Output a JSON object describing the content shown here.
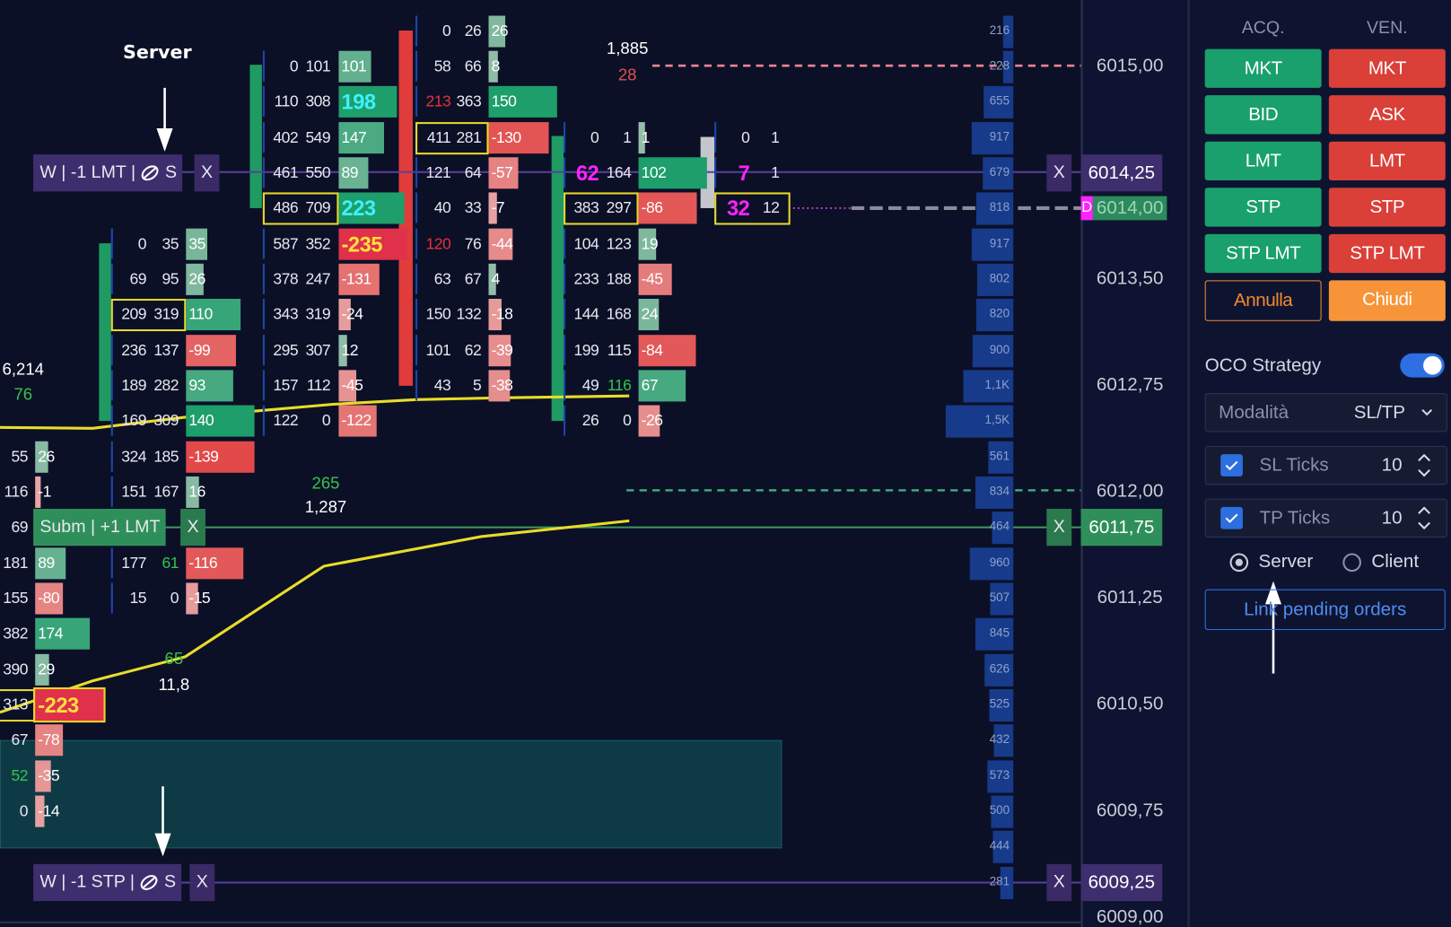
{
  "annotation": "Server",
  "footprint": [
    {
      "rows": [
        {
          "ask": 55,
          "delta": 26
        },
        {
          "ask": 116,
          "delta": -1
        },
        {
          "ask": 69
        },
        {
          "ask": 181,
          "delta": 89
        },
        {
          "ask": 155,
          "delta": -80
        },
        {
          "ask": 382,
          "delta": 174
        },
        {
          "ask": 390,
          "delta": 29
        },
        {
          "ask": 313,
          "delta": -223
        },
        {
          "ask": 67,
          "delta": -78
        },
        {
          "ask": 52,
          "delta": -35
        },
        {
          "ask": 0,
          "delta": -14
        }
      ]
    },
    {
      "rows": [
        {
          "bid": 0,
          "ask": 35,
          "delta": 35
        },
        {
          "bid": 69,
          "ask": 95,
          "delta": 26
        },
        {
          "bid": 209,
          "ask": 319,
          "delta": 110
        },
        {
          "bid": 236,
          "ask": 137,
          "delta": -99
        },
        {
          "bid": 189,
          "ask": 282,
          "delta": 93
        },
        {
          "bid": 169,
          "ask": 309,
          "delta": 140
        },
        {
          "bid": 324,
          "ask": 185,
          "delta": -139
        },
        {
          "bid": 151,
          "ask": 167,
          "delta": 16
        },
        null,
        {
          "bid": 177,
          "ask": 61,
          "delta": -116
        },
        {
          "bid": 15,
          "ask": 0,
          "delta": -15
        }
      ]
    },
    {
      "rows": [
        {
          "bid": 0,
          "ask": 101,
          "delta": 101
        },
        {
          "bid": 110,
          "ask": 308,
          "delta": 198
        },
        {
          "bid": 402,
          "ask": 549,
          "delta": 147
        },
        {
          "bid": 461,
          "ask": 550,
          "delta": 89
        },
        {
          "bid": 486,
          "ask": 709,
          "delta": 223
        },
        {
          "bid": 587,
          "ask": 352,
          "delta": -235
        },
        {
          "bid": 378,
          "ask": 247,
          "delta": -131
        },
        {
          "bid": 343,
          "ask": 319,
          "delta": -24
        },
        {
          "bid": 295,
          "ask": 307,
          "delta": 12
        },
        {
          "bid": 157,
          "ask": 112,
          "delta": -45
        },
        {
          "bid": 122,
          "ask": 0,
          "delta": -122
        }
      ]
    },
    {
      "rows": [
        {
          "bid": 0,
          "ask": 26,
          "delta": 26
        },
        {
          "bid": 58,
          "ask": 66,
          "delta": 8
        },
        {
          "bid": 213,
          "ask": 363,
          "delta": 150
        },
        {
          "bid": 411,
          "ask": 281,
          "delta": -130
        },
        {
          "bid": 121,
          "ask": 64,
          "delta": -57
        },
        {
          "bid": 40,
          "ask": 33,
          "delta": -7
        },
        {
          "bid": 120,
          "ask": 76,
          "delta": -44
        },
        {
          "bid": 63,
          "ask": 67,
          "delta": 4
        },
        {
          "bid": 150,
          "ask": 132,
          "delta": -18
        },
        {
          "bid": 101,
          "ask": 62,
          "delta": -39
        },
        {
          "bid": 43,
          "ask": 5,
          "delta": -38
        }
      ]
    },
    {
      "rows": [
        {
          "bid": 0,
          "ask": 1,
          "delta": 1
        },
        {
          "bid": 62,
          "ask": 164,
          "delta": 102
        },
        {
          "bid": 383,
          "ask": 297,
          "delta": -86
        },
        {
          "bid": 104,
          "ask": 123,
          "delta": 19
        },
        {
          "bid": 233,
          "ask": 188,
          "delta": -45
        },
        {
          "bid": 144,
          "ask": 168,
          "delta": 24
        },
        {
          "bid": 199,
          "ask": 115,
          "delta": -84
        },
        {
          "bid": 49,
          "ask": 116,
          "delta": 67
        },
        {
          "bid": 26,
          "ask": 0,
          "delta": -26
        }
      ]
    },
    {
      "rows": [
        {
          "bid": 0,
          "ask": 1
        },
        {
          "bid": 7,
          "ask": 1
        },
        {
          "bid": 32,
          "ask": 12
        }
      ]
    }
  ],
  "volume_labels": [
    "6,214",
    "76",
    "265",
    "1,287",
    "1,885",
    "28",
    "65",
    "11,8"
  ],
  "volume_profile": [
    216,
    228,
    655,
    917,
    679,
    818,
    917,
    802,
    820,
    900,
    {
      "value": 1100,
      "label": "1,1K"
    },
    {
      "value": 1500,
      "label": "1,5K"
    },
    561,
    834,
    464,
    960,
    507,
    845,
    626,
    525,
    432,
    573,
    500,
    444,
    281
  ],
  "price_axis": [
    "6015,00",
    "6013,50",
    "6012,75",
    "6012,00",
    "6011,25",
    "6010,50",
    "6009,75",
    "6009,00"
  ],
  "last_price": {
    "flag": "D",
    "price": "6014,00"
  },
  "orders": [
    {
      "label": "W | -1 LMT |",
      "route": "S",
      "cancel": "X",
      "close": "X",
      "price": "6014,25"
    },
    {
      "label": "Subm | +1 LMT",
      "cancel": "X",
      "close": "X",
      "price": "6011,75"
    },
    {
      "label": "W | -1 STP |",
      "route": "S",
      "cancel": "X",
      "close": "X",
      "price": "6009,25"
    }
  ],
  "panel": {
    "buy_header": "ACQ.",
    "sell_header": "VEN.",
    "buy": [
      "MKT",
      "BID",
      "LMT",
      "STP",
      "STP LMT"
    ],
    "sell": [
      "MKT",
      "ASK",
      "LMT",
      "STP",
      "STP LMT"
    ],
    "cancel": "Annulla",
    "close": "Chiudi",
    "oco": "OCO Strategy",
    "mode_label": "Modalità",
    "mode": "SL/TP",
    "sl_label": "SL Ticks",
    "sl": 10,
    "tp_label": "TP Ticks",
    "tp": 10,
    "routing": [
      "Server",
      "Client"
    ],
    "link": "Link pending orders"
  }
}
